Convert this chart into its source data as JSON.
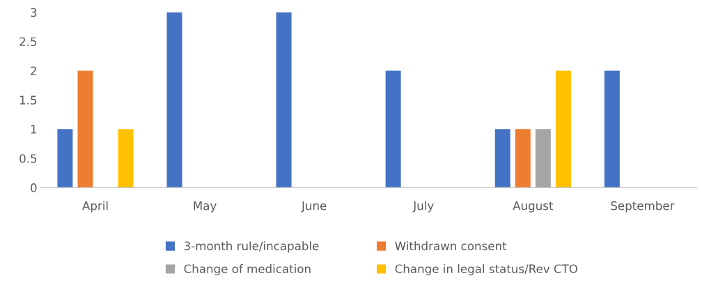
{
  "chart_data": {
    "type": "bar",
    "categories": [
      "April",
      "May",
      "June",
      "July",
      "August",
      "September"
    ],
    "series": [
      {
        "name": "3-month rule/incapable",
        "color": "#4472c4",
        "values": [
          1,
          3,
          3,
          2,
          1,
          2
        ]
      },
      {
        "name": "Withdrawn consent",
        "color": "#ed7d31",
        "values": [
          2,
          0,
          0,
          0,
          1,
          0
        ]
      },
      {
        "name": "Change of medication",
        "color": "#a5a5a5",
        "values": [
          0,
          0,
          0,
          0,
          1,
          0
        ]
      },
      {
        "name": "Change in legal status/Rev CTO",
        "color": "#ffc000",
        "values": [
          1,
          0,
          0,
          0,
          2,
          0
        ]
      }
    ],
    "ylim": [
      0,
      3
    ],
    "yticks": [
      0,
      0.5,
      1,
      1.5,
      2,
      2.5,
      3
    ],
    "grid": false,
    "legend": "bottom"
  }
}
